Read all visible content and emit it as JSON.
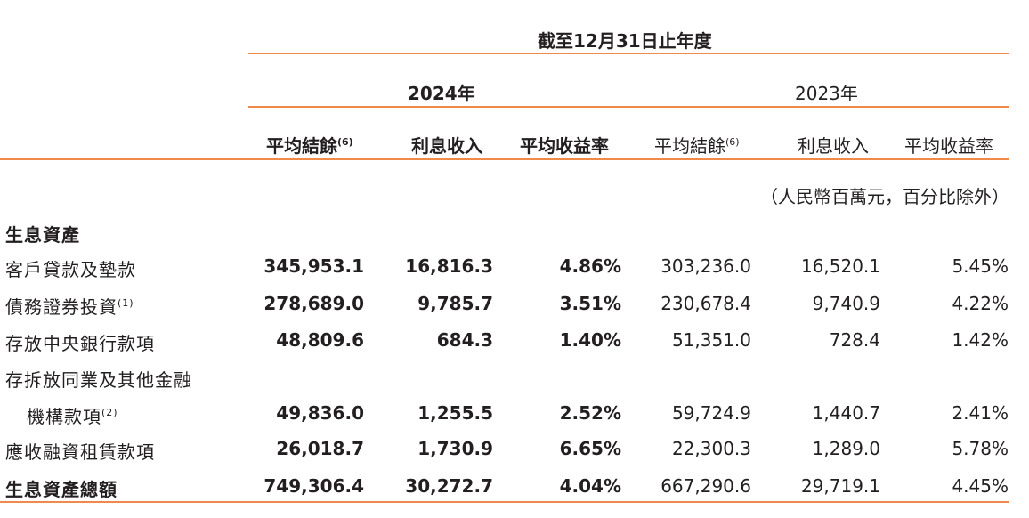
{
  "period_header": "截至12月31日止年度",
  "years": {
    "y2024": "2024年",
    "y2023": "2023年"
  },
  "columns": {
    "avg_balance": "平均結餘",
    "avg_balance_note": "(6)",
    "interest_income": "利息收入",
    "avg_yield": "平均收益率"
  },
  "unit_note": "（人民幣百萬元，百分比除外）",
  "section_title": "生息資產",
  "rows": [
    {
      "label": "客戶貸款及墊款",
      "note": "",
      "v2024": [
        "345,953.1",
        "16,816.3",
        "4.86%"
      ],
      "v2023": [
        "303,236.0",
        "16,520.1",
        "5.45%"
      ]
    },
    {
      "label": "債務證券投資",
      "note": "(1)",
      "v2024": [
        "278,689.0",
        "9,785.7",
        "3.51%"
      ],
      "v2023": [
        "230,678.4",
        "9,740.9",
        "4.22%"
      ]
    },
    {
      "label": "存放中央銀行款項",
      "note": "",
      "v2024": [
        "48,809.6",
        "684.3",
        "1.40%"
      ],
      "v2023": [
        "51,351.0",
        "728.4",
        "1.42%"
      ]
    },
    {
      "label": "存拆放同業及其他金融",
      "label2": "機構款項",
      "note": "(2)",
      "v2024": [
        "49,836.0",
        "1,255.5",
        "2.52%"
      ],
      "v2023": [
        "59,724.9",
        "1,440.7",
        "2.41%"
      ]
    },
    {
      "label": "應收融資租賃款項",
      "note": "",
      "v2024": [
        "26,018.7",
        "1,730.9",
        "6.65%"
      ],
      "v2023": [
        "22,300.3",
        "1,289.0",
        "5.78%"
      ]
    }
  ],
  "total": {
    "label": "生息資產總額",
    "v2024": [
      "749,306.4",
      "30,272.7",
      "4.04%"
    ],
    "v2023": [
      "667,290.6",
      "29,719.1",
      "4.45%"
    ]
  }
}
